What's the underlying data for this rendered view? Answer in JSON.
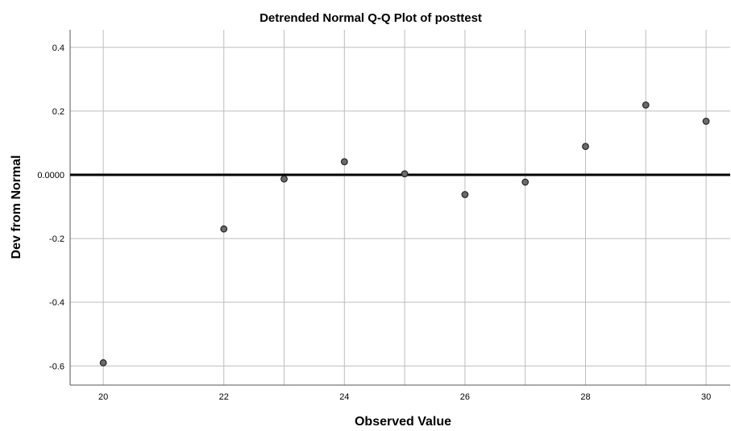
{
  "chart_data": {
    "type": "scatter",
    "title": "Detrended Normal Q-Q Plot of posttest",
    "xlabel": "Observed Value",
    "ylabel": "Dev from Normal",
    "xlim": [
      19.45,
      30.4
    ],
    "ylim": [
      -0.66,
      0.455
    ],
    "x_ticks": [
      20,
      22,
      24,
      26,
      28,
      30
    ],
    "x_tick_labels": [
      "20",
      "22",
      "24",
      "26",
      "28",
      "30"
    ],
    "y_ticks": [
      0.4,
      0.2,
      0.0,
      -0.2,
      -0.4,
      -0.6
    ],
    "y_tick_labels": [
      "0.4",
      "0.2",
      "0.0000",
      "-0.2",
      "-0.4",
      "-0.6"
    ],
    "x_gridlines": [
      20,
      22,
      23,
      24,
      25,
      26,
      27,
      28,
      29,
      30
    ],
    "reference_line": 0,
    "grid": true,
    "points": [
      {
        "x": 20,
        "y": -0.59
      },
      {
        "x": 22,
        "y": -0.17
      },
      {
        "x": 23,
        "y": -0.013
      },
      {
        "x": 24,
        "y": 0.041
      },
      {
        "x": 25,
        "y": 0.003
      },
      {
        "x": 26,
        "y": -0.062
      },
      {
        "x": 27,
        "y": -0.023
      },
      {
        "x": 28,
        "y": 0.089
      },
      {
        "x": 29,
        "y": 0.219
      },
      {
        "x": 30,
        "y": 0.168
      }
    ]
  }
}
